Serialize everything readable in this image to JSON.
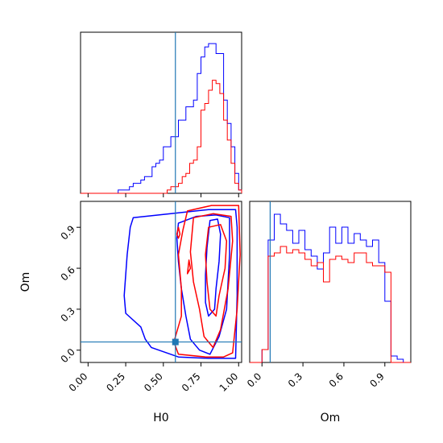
{
  "chart_data": {
    "type": "corner",
    "parameters": [
      "H0",
      "Om"
    ],
    "truth": {
      "H0": 0.58,
      "Om": 0.06
    },
    "colors": {
      "blue": "#0000ff",
      "red": "#ff0000",
      "truth": "#1f77b4"
    },
    "panels": {
      "h0_hist": {
        "xlim": [
          -0.05,
          1.02
        ],
        "bin_edges": [
          -0.05,
          -0.025,
          0.0,
          0.025,
          0.05,
          0.075,
          0.1,
          0.125,
          0.15,
          0.175,
          0.2,
          0.225,
          0.25,
          0.275,
          0.3,
          0.325,
          0.35,
          0.375,
          0.4,
          0.425,
          0.45,
          0.475,
          0.5,
          0.525,
          0.55,
          0.575,
          0.6,
          0.625,
          0.65,
          0.675,
          0.7,
          0.725,
          0.75,
          0.775,
          0.8,
          0.825,
          0.85,
          0.875,
          0.9,
          0.925,
          0.95,
          0.975,
          1.0,
          1.02
        ],
        "blue_counts": [
          0,
          0,
          0,
          0,
          0,
          0,
          0,
          0,
          0,
          0,
          1,
          1,
          1,
          2,
          3,
          3,
          4,
          5,
          5,
          8,
          9,
          10,
          14,
          14,
          17,
          17,
          22,
          22,
          26,
          26,
          28,
          36,
          41,
          44,
          45,
          45,
          42,
          42,
          28,
          21,
          14,
          6,
          1
        ],
        "red_counts": [
          0,
          0,
          0,
          0,
          0,
          0,
          0,
          0,
          0,
          0,
          0,
          0,
          0,
          0,
          0,
          0,
          0,
          0,
          0,
          0,
          0,
          0,
          0,
          1,
          2,
          2,
          3,
          5,
          6,
          9,
          10,
          14,
          25,
          27,
          31,
          34,
          33,
          30,
          22,
          16,
          9,
          3,
          1
        ],
        "ymax": 46
      },
      "om_hist": {
        "xlim": [
          -0.09,
          1.09
        ],
        "bin_edges": [
          -0.09,
          -0.045,
          0.0,
          0.045,
          0.09,
          0.135,
          0.18,
          0.225,
          0.27,
          0.315,
          0.36,
          0.405,
          0.45,
          0.495,
          0.54,
          0.585,
          0.63,
          0.675,
          0.72,
          0.765,
          0.81,
          0.855,
          0.9,
          0.945,
          0.99,
          1.035,
          1.09
        ],
        "blue_counts": [
          0,
          0,
          4,
          38,
          46,
          43,
          41,
          37,
          41,
          35,
          33,
          29,
          34,
          42,
          37,
          42,
          37,
          40,
          38,
          36,
          38,
          31,
          19,
          2,
          1,
          0
        ],
        "red_counts": [
          0,
          0,
          4,
          33,
          34,
          36,
          34,
          35,
          34,
          32,
          30,
          31,
          25,
          32,
          33,
          32,
          31,
          34,
          34,
          31,
          30,
          30,
          28,
          0,
          0,
          0
        ],
        "ymax": 48,
        "xticks": [
          {
            "v": 0.0,
            "label": "0.0"
          },
          {
            "v": 0.3,
            "label": "0.3"
          },
          {
            "v": 0.6,
            "label": "0.6"
          },
          {
            "v": 0.9,
            "label": "0.9"
          }
        ],
        "xlabel": "Om"
      },
      "joint": {
        "xlim": [
          -0.05,
          1.02
        ],
        "ylim": [
          -0.09,
          1.09
        ],
        "xticks": [
          {
            "v": 0.0,
            "label": "0.00"
          },
          {
            "v": 0.25,
            "label": "0.25"
          },
          {
            "v": 0.5,
            "label": "0.50"
          },
          {
            "v": 0.75,
            "label": "0.75"
          },
          {
            "v": 1.0,
            "label": "1.00"
          }
        ],
        "yticks": [
          {
            "v": 0.0,
            "label": "0.0"
          },
          {
            "v": 0.3,
            "label": "0.3"
          },
          {
            "v": 0.6,
            "label": "0.6"
          },
          {
            "v": 0.9,
            "label": "0.9"
          }
        ],
        "xlabel": "H0",
        "ylabel": "Om",
        "blue_contours": [
          [
            [
              0.3,
              0.97
            ],
            [
              0.55,
              1.0
            ],
            [
              0.8,
              1.03
            ],
            [
              0.98,
              1.03
            ],
            [
              0.99,
              0.9
            ],
            [
              0.99,
              0.4
            ],
            [
              0.98,
              -0.06
            ],
            [
              0.8,
              -0.06
            ],
            [
              0.6,
              -0.05
            ],
            [
              0.42,
              0.02
            ],
            [
              0.38,
              0.08
            ],
            [
              0.35,
              0.17
            ],
            [
              0.25,
              0.27
            ],
            [
              0.24,
              0.4
            ],
            [
              0.26,
              0.7
            ],
            [
              0.28,
              0.9
            ],
            [
              0.3,
              0.97
            ]
          ],
          [
            [
              0.6,
              0.93
            ],
            [
              0.72,
              0.98
            ],
            [
              0.85,
              0.99
            ],
            [
              0.94,
              0.97
            ],
            [
              0.94,
              0.7
            ],
            [
              0.92,
              0.3
            ],
            [
              0.87,
              0.1
            ],
            [
              0.81,
              -0.03
            ],
            [
              0.74,
              0.0
            ],
            [
              0.68,
              0.08
            ],
            [
              0.65,
              0.25
            ],
            [
              0.62,
              0.45
            ],
            [
              0.6,
              0.65
            ],
            [
              0.59,
              0.82
            ],
            [
              0.6,
              0.93
            ]
          ],
          [
            [
              0.81,
              0.95
            ],
            [
              0.86,
              0.96
            ],
            [
              0.88,
              0.85
            ],
            [
              0.87,
              0.65
            ],
            [
              0.85,
              0.45
            ],
            [
              0.84,
              0.3
            ],
            [
              0.8,
              0.25
            ],
            [
              0.78,
              0.35
            ],
            [
              0.78,
              0.55
            ],
            [
              0.79,
              0.75
            ],
            [
              0.81,
              0.95
            ]
          ]
        ],
        "red_contours": [
          [
            [
              0.66,
              1.02
            ],
            [
              0.82,
              1.06
            ],
            [
              1.0,
              1.06
            ],
            [
              1.01,
              0.7
            ],
            [
              0.99,
              0.3
            ],
            [
              0.96,
              -0.02
            ],
            [
              0.9,
              -0.05
            ],
            [
              0.78,
              -0.05
            ],
            [
              0.6,
              -0.03
            ],
            [
              0.57,
              0.06
            ],
            [
              0.62,
              0.25
            ],
            [
              0.62,
              0.45
            ],
            [
              0.6,
              0.7
            ],
            [
              0.63,
              0.88
            ],
            [
              0.66,
              1.02
            ]
          ],
          [
            [
              0.7,
              0.97
            ],
            [
              0.83,
              1.0
            ],
            [
              0.95,
              0.98
            ],
            [
              0.96,
              0.8
            ],
            [
              0.93,
              0.45
            ],
            [
              0.88,
              0.15
            ],
            [
              0.83,
              0.02
            ],
            [
              0.77,
              0.1
            ],
            [
              0.74,
              0.3
            ],
            [
              0.7,
              0.5
            ],
            [
              0.68,
              0.72
            ],
            [
              0.7,
              0.97
            ]
          ],
          [
            [
              0.8,
              0.9
            ],
            [
              0.88,
              0.92
            ],
            [
              0.92,
              0.8
            ],
            [
              0.91,
              0.6
            ],
            [
              0.87,
              0.4
            ],
            [
              0.85,
              0.25
            ],
            [
              0.81,
              0.3
            ],
            [
              0.79,
              0.5
            ],
            [
              0.78,
              0.7
            ],
            [
              0.8,
              0.9
            ]
          ],
          [
            [
              0.59,
              0.85
            ],
            [
              0.6,
              0.9
            ],
            [
              0.61,
              0.85
            ],
            [
              0.6,
              0.82
            ],
            [
              0.59,
              0.85
            ]
          ],
          [
            [
              0.66,
              0.56
            ],
            [
              0.67,
              0.66
            ],
            [
              0.68,
              0.6
            ],
            [
              0.66,
              0.56
            ]
          ]
        ]
      }
    }
  }
}
